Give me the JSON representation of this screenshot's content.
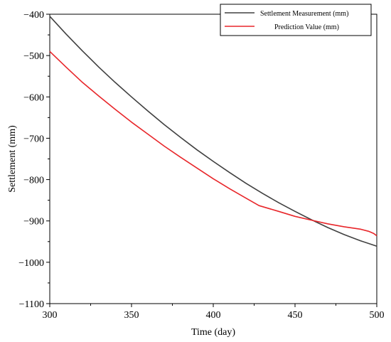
{
  "chart_data": {
    "type": "line",
    "title": "",
    "xlabel": "Time  (day)",
    "ylabel": "Settlement (mm)",
    "xlim": [
      300,
      500
    ],
    "ylim": [
      -1100,
      -400
    ],
    "x_ticks": [
      "300",
      "350",
      "400",
      "450",
      "500"
    ],
    "y_ticks": [
      "-400",
      "-500",
      "-600",
      "-700",
      "-800",
      "-900",
      "-1000",
      "-1100"
    ],
    "legend_position": "top-right, outside plot",
    "series": [
      {
        "name": "Settlement Measurement (mm)",
        "color": "#404040",
        "x": [
          300,
          310,
          320,
          330,
          340,
          350,
          360,
          370,
          380,
          390,
          400,
          410,
          420,
          430,
          440,
          450,
          460,
          470,
          480,
          490,
          500
        ],
        "y": [
          -405,
          -448,
          -489,
          -528,
          -565,
          -600,
          -634,
          -667,
          -698,
          -728,
          -756,
          -783,
          -809,
          -833,
          -856,
          -877,
          -897,
          -916,
          -933,
          -948,
          -961
        ]
      },
      {
        "name": "Prediction Value (mm)",
        "color": "#e8262a",
        "x": [
          300,
          310,
          320,
          330,
          340,
          350,
          360,
          370,
          380,
          390,
          400,
          410,
          420,
          428,
          440,
          450,
          460,
          470,
          480,
          490,
          495,
          498,
          500
        ],
        "y": [
          -490,
          -528,
          -565,
          -598,
          -630,
          -661,
          -690,
          -719,
          -746,
          -772,
          -798,
          -822,
          -845,
          -863,
          -877,
          -889,
          -898,
          -907,
          -914,
          -920,
          -925,
          -930,
          -936
        ]
      }
    ]
  }
}
